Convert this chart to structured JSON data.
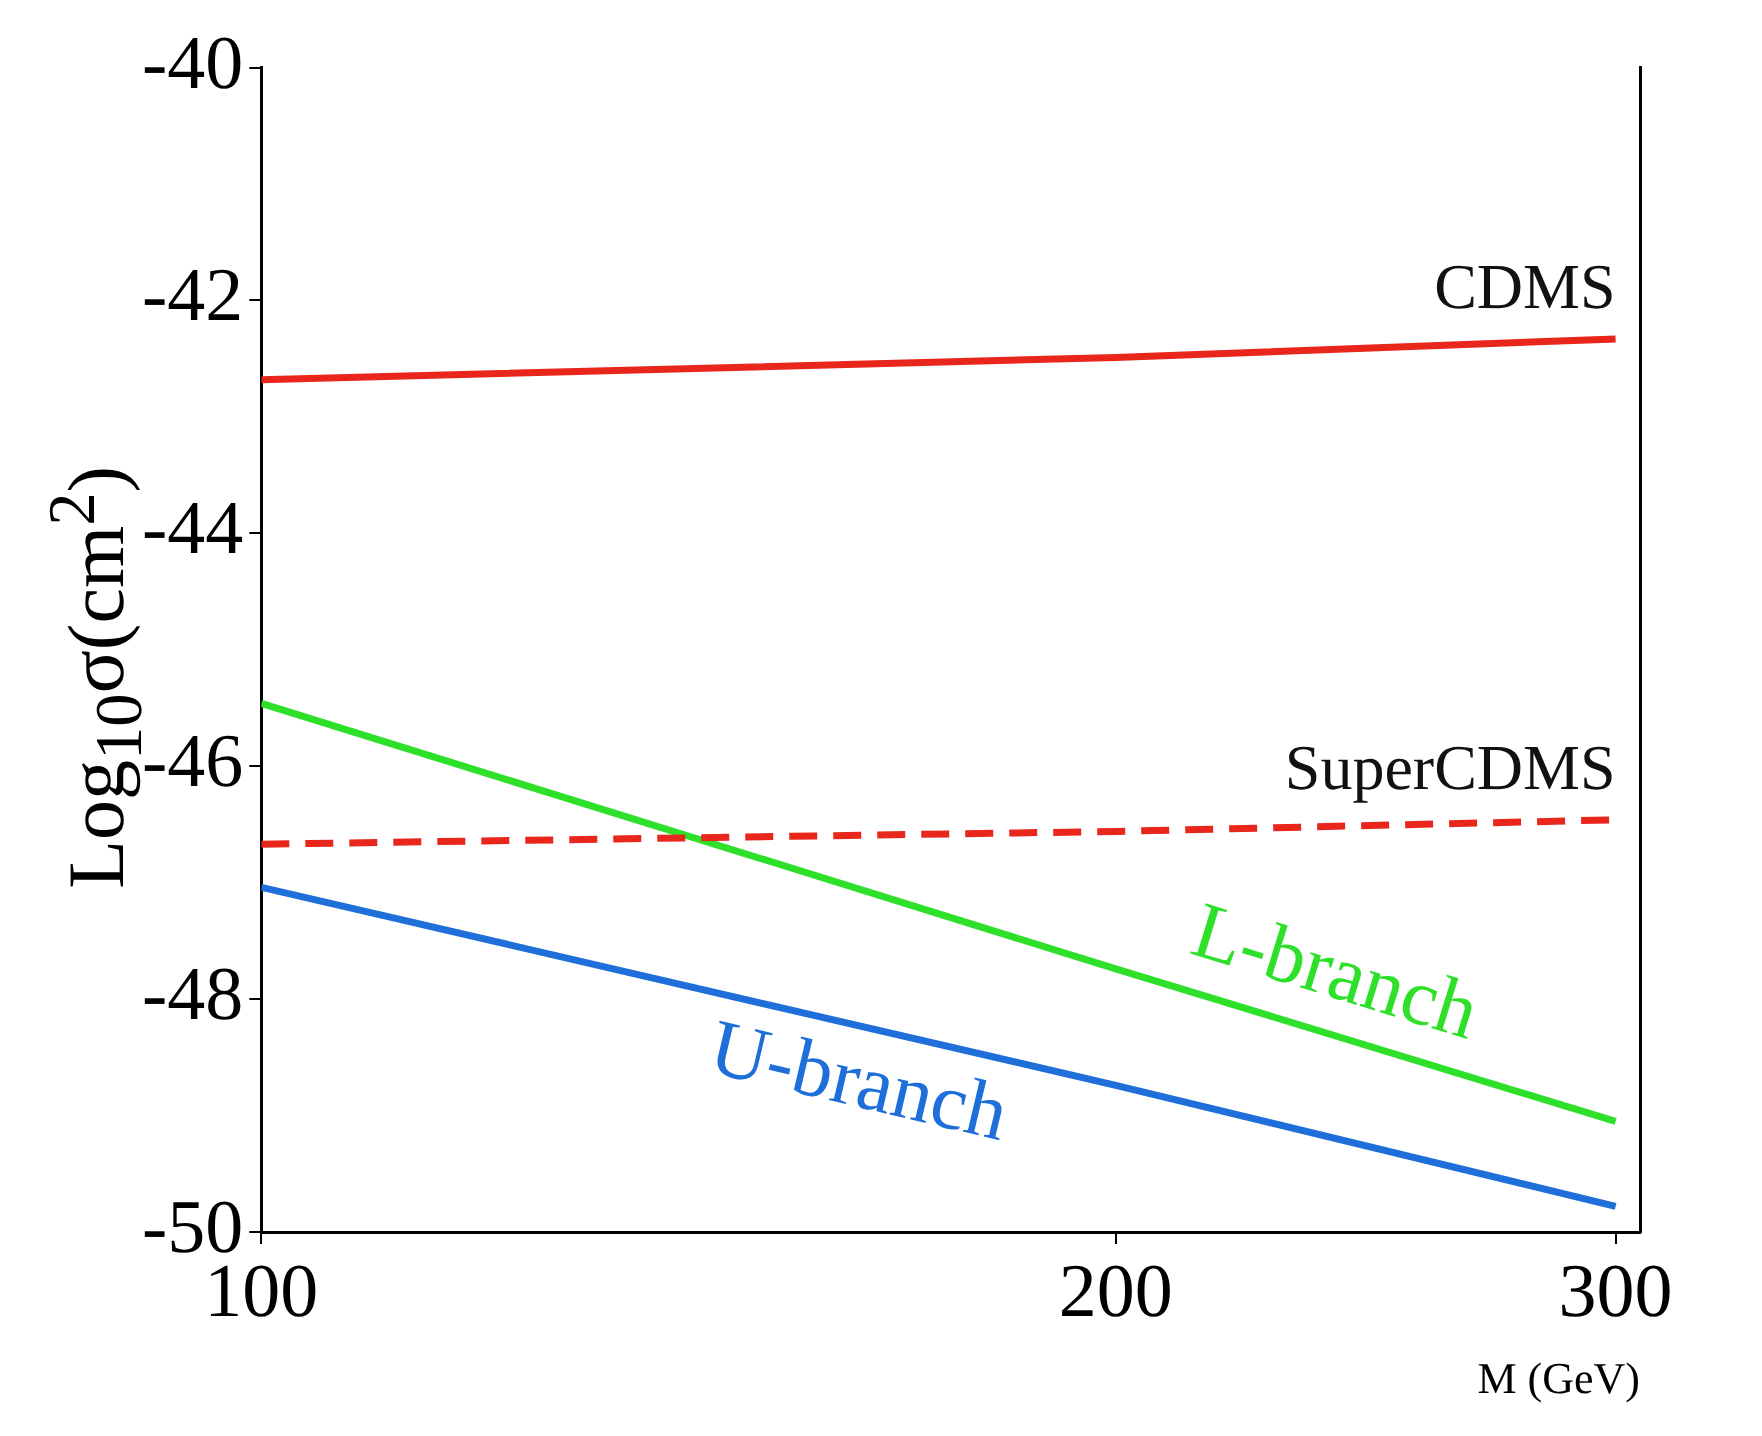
{
  "chart_data": {
    "type": "line",
    "xlabel": "M (GeV)",
    "ylabel": "Log$_{10}$σ(cm$^{2}$)",
    "x": [
      100,
      200,
      300
    ],
    "series": [
      {
        "name": "CDMS",
        "color": "#e8261c",
        "values": [
          -42.68,
          -42.49,
          -42.33
        ]
      },
      {
        "name": "SuperCDMS",
        "color": "#e8261c",
        "values": [
          -46.67,
          -46.56,
          -46.46
        ],
        "line_style": "dashed"
      },
      {
        "name": "L-branch",
        "color": "#2ee02a",
        "values": [
          -45.46,
          -47.74,
          -49.05
        ]
      },
      {
        "name": "U-branch",
        "color": "#1f6fdb",
        "values": [
          -47.04,
          -48.74,
          -49.78
        ]
      }
    ],
    "log": "x",
    "xlim": [
      100,
      306
    ],
    "xticks": [
      100,
      200,
      300
    ],
    "ylim": [
      -50,
      -40
    ],
    "yticks": [
      -50,
      -48,
      -46,
      -44,
      -42,
      -40
    ],
    "grid": false,
    "legend": false,
    "marker": "none"
  }
}
